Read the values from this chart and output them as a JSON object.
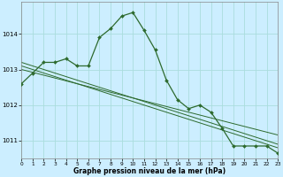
{
  "title": "Graphe pression niveau de la mer (hPa)",
  "bg_color": "#cceeff",
  "grid_color": "#aadddd",
  "line_color": "#2d6a2d",
  "x_values": [
    0,
    1,
    2,
    3,
    4,
    5,
    6,
    7,
    8,
    9,
    10,
    11,
    12,
    13,
    14,
    15,
    16,
    17,
    18,
    19,
    20,
    21,
    22,
    23
  ],
  "y_main": [
    1012.6,
    1012.9,
    1013.2,
    1013.2,
    1013.3,
    1013.1,
    1013.1,
    1013.9,
    1014.15,
    1014.5,
    1014.6,
    1014.1,
    1013.55,
    1012.7,
    1012.15,
    1011.9,
    1012.0,
    1011.8,
    1011.35,
    1010.85,
    1010.85,
    1010.85,
    1010.85,
    1010.65
  ],
  "y_reg1": [
    1013.2,
    1013.1,
    1013.0,
    1012.9,
    1012.8,
    1012.7,
    1012.6,
    1012.5,
    1012.4,
    1012.3,
    1012.2,
    1012.1,
    1012.0,
    1011.9,
    1011.8,
    1011.7,
    1011.6,
    1011.5,
    1011.4,
    1011.3,
    1011.2,
    1011.1,
    1011.0,
    1010.9
  ],
  "y_reg2": [
    1013.0,
    1012.92,
    1012.84,
    1012.76,
    1012.68,
    1012.6,
    1012.52,
    1012.44,
    1012.36,
    1012.28,
    1012.2,
    1012.12,
    1012.04,
    1011.96,
    1011.88,
    1011.8,
    1011.72,
    1011.64,
    1011.56,
    1011.48,
    1011.4,
    1011.32,
    1011.24,
    1011.16
  ],
  "y_reg3": [
    1013.1,
    1013.0,
    1012.9,
    1012.8,
    1012.7,
    1012.6,
    1012.5,
    1012.4,
    1012.3,
    1012.2,
    1012.1,
    1012.0,
    1011.9,
    1011.8,
    1011.7,
    1011.6,
    1011.5,
    1011.4,
    1011.3,
    1011.2,
    1011.1,
    1011.0,
    1010.9,
    1010.8
  ],
  "ylim": [
    1010.5,
    1014.9
  ],
  "yticks": [
    1011,
    1012,
    1013,
    1014
  ],
  "xlim": [
    0,
    23
  ],
  "xticks": [
    0,
    1,
    2,
    3,
    4,
    5,
    6,
    7,
    8,
    9,
    10,
    11,
    12,
    13,
    14,
    15,
    16,
    17,
    18,
    19,
    20,
    21,
    22,
    23
  ]
}
